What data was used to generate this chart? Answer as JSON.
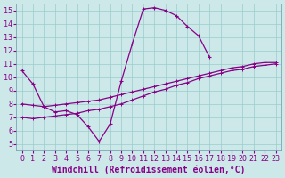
{
  "xlabel": "Windchill (Refroidissement éolien,°C)",
  "bg_color": "#cce8e8",
  "grid_color": "#99cccc",
  "line_color": "#880088",
  "xlim": [
    -0.5,
    23.5
  ],
  "ylim": [
    4.5,
    15.5
  ],
  "xticks": [
    0,
    1,
    2,
    3,
    4,
    5,
    6,
    7,
    8,
    9,
    10,
    11,
    12,
    13,
    14,
    15,
    16,
    17,
    18,
    19,
    20,
    21,
    22,
    23
  ],
  "yticks": [
    5,
    6,
    7,
    8,
    9,
    10,
    11,
    12,
    13,
    14,
    15
  ],
  "hump_x": [
    0,
    1,
    2,
    3,
    4,
    5,
    6,
    7,
    8,
    9,
    10,
    11,
    12,
    13,
    14,
    15,
    16,
    17
  ],
  "hump_y": [
    10.5,
    9.5,
    7.8,
    7.4,
    7.5,
    7.2,
    6.3,
    5.2,
    6.5,
    9.7,
    12.5,
    15.1,
    15.2,
    15.0,
    14.6,
    13.8,
    13.1,
    11.5
  ],
  "line2_x": [
    0,
    1,
    2,
    3,
    4,
    5,
    6,
    7,
    8,
    9,
    10,
    11,
    12,
    13,
    14,
    15,
    16,
    17,
    18,
    19,
    20,
    21,
    22,
    23
  ],
  "line2_y": [
    8.0,
    7.9,
    7.8,
    7.9,
    8.0,
    8.1,
    8.2,
    8.3,
    8.5,
    8.7,
    8.9,
    9.1,
    9.3,
    9.5,
    9.7,
    9.9,
    10.1,
    10.3,
    10.5,
    10.7,
    10.8,
    11.0,
    11.1,
    11.1
  ],
  "line3_x": [
    0,
    1,
    2,
    3,
    4,
    5,
    6,
    7,
    8,
    9,
    10,
    11,
    12,
    13,
    14,
    15,
    16,
    17,
    18,
    19,
    20,
    21,
    22,
    23
  ],
  "line3_y": [
    7.0,
    6.9,
    7.0,
    7.1,
    7.2,
    7.3,
    7.5,
    7.6,
    7.8,
    8.0,
    8.3,
    8.6,
    8.9,
    9.1,
    9.4,
    9.6,
    9.9,
    10.1,
    10.3,
    10.5,
    10.6,
    10.8,
    10.9,
    11.0
  ],
  "xlabel_fontsize": 7,
  "tick_fontsize": 6
}
